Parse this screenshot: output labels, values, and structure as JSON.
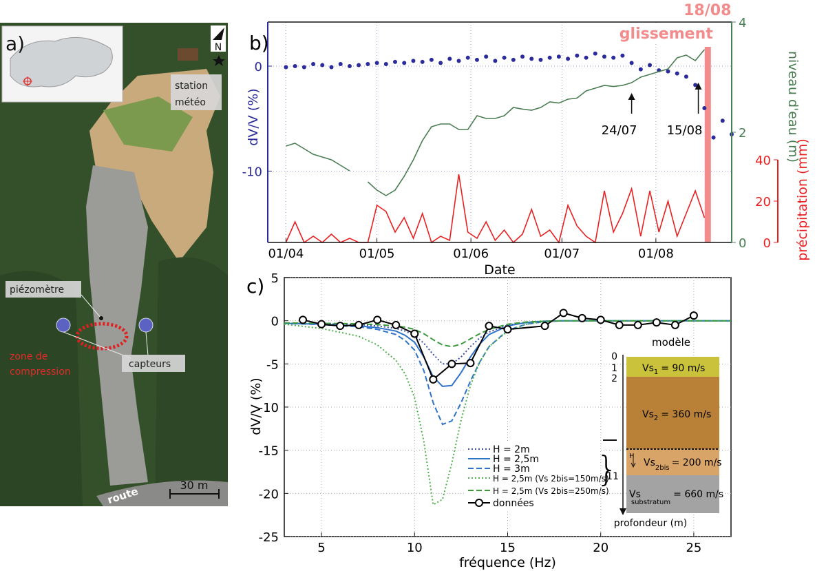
{
  "panel_a": {
    "label": "a)",
    "north": "N",
    "station_label": [
      "station",
      "météo"
    ],
    "piezometer": "piézomètre",
    "zone_label": [
      "zone de",
      "compression"
    ],
    "sensors": "capteurs",
    "scale": "30 m",
    "road": "route"
  },
  "chart_data": [
    {
      "type": "line",
      "label": "b)",
      "x_label": "Date",
      "y_label": "dV/V (%)",
      "y2_label": "niveau d'eau (m)",
      "y3_label": "précipitation (mm)",
      "xlim": [
        "26/03",
        "26/08"
      ],
      "xticks": [
        "01/04",
        "01/05",
        "01/06",
        "01/07",
        "01/08"
      ],
      "ylim": [
        -16.8,
        4.2
      ],
      "yticks": [
        0,
        -10
      ],
      "y2lim": [
        0,
        4
      ],
      "y2ticks": [
        0,
        2,
        4
      ],
      "y3lim": [
        0,
        40
      ],
      "y3ticks": [
        0,
        20,
        40
      ],
      "grid": true,
      "x": [
        "01/04",
        "04/04",
        "07/04",
        "10/04",
        "13/04",
        "16/04",
        "19/04",
        "22/04",
        "25/04",
        "28/04",
        "01/05",
        "04/05",
        "07/05",
        "10/05",
        "13/05",
        "16/05",
        "19/05",
        "22/05",
        "25/05",
        "28/05",
        "31/05",
        "03/06",
        "06/06",
        "09/06",
        "12/06",
        "15/06",
        "18/06",
        "21/06",
        "24/06",
        "27/06",
        "30/06",
        "03/07",
        "06/07",
        "09/07",
        "12/07",
        "15/07",
        "18/07",
        "21/07",
        "24/07",
        "27/07",
        "30/07",
        "02/08",
        "05/08",
        "08/08",
        "11/08",
        "14/08",
        "17/08",
        "20/08",
        "23/08",
        "26/08"
      ],
      "series": [
        {
          "color": "#2b2b9c",
          "mode": "markers",
          "axis": "y",
          "values": [
            -0.1,
            0,
            -0.1,
            0.2,
            0.1,
            -0.1,
            0.2,
            0,
            0.1,
            0.2,
            0.3,
            0.2,
            0.4,
            0.3,
            0.5,
            0.4,
            0.6,
            0.3,
            0.7,
            0.5,
            0.8,
            0.6,
            0.9,
            0.5,
            0.8,
            0.6,
            0.9,
            0.7,
            0.6,
            0.8,
            0.9,
            0.7,
            1.0,
            0.8,
            1.2,
            0.9,
            0.8,
            1.0,
            0.3,
            -0.3,
            0.1,
            -0.4,
            -0.5,
            -0.7,
            -1.0,
            -1.8,
            -4.0,
            -6.8,
            -5.2,
            -6.5
          ]
        },
        {
          "color": "#4a7d52",
          "mode": "line",
          "axis": "y2",
          "values": [
            1.75,
            1.8,
            1.7,
            1.6,
            1.55,
            1.5,
            1.4,
            1.3,
            null,
            1.1,
            0.95,
            0.85,
            0.95,
            1.2,
            1.5,
            1.85,
            2.1,
            2.15,
            2.15,
            2.05,
            2.05,
            2.3,
            2.25,
            2.25,
            2.3,
            2.45,
            2.42,
            2.4,
            2.45,
            2.55,
            2.53,
            2.6,
            2.62,
            2.75,
            2.8,
            2.85,
            2.83,
            2.85,
            2.9,
            3.0,
            3.05,
            3.1,
            3.15,
            3.35,
            3.4,
            3.3,
            3.5,
            null,
            null,
            null
          ]
        },
        {
          "color": "#e82020",
          "mode": "line",
          "axis": "y3",
          "values": [
            0,
            10,
            0,
            3,
            0,
            4,
            0,
            2,
            0,
            0,
            18,
            15,
            5,
            12,
            2,
            14,
            0,
            3,
            1,
            33,
            5,
            2,
            10,
            1,
            6,
            0,
            4,
            16,
            3,
            6,
            0,
            18,
            8,
            3,
            0,
            25,
            5,
            14,
            26,
            3,
            25,
            5,
            20,
            3,
            14,
            25,
            12,
            null,
            null,
            null
          ]
        }
      ],
      "event": {
        "date": "18/08",
        "label": "glissement",
        "color": "#f28b8b"
      },
      "arrows": [
        {
          "date": "24/07"
        },
        {
          "date": "15/08"
        }
      ]
    },
    {
      "type": "line",
      "label": "c)",
      "x_label": "fréquence (Hz)",
      "y_label": "dV/V (%)",
      "xlim": [
        3,
        27
      ],
      "xticks": [
        5,
        10,
        15,
        20,
        25
      ],
      "ylim": [
        -25,
        5
      ],
      "yticks": [
        5,
        0,
        -5,
        -10,
        -15,
        -20,
        -25
      ],
      "grid": true,
      "series": [
        {
          "name": "H = 2m",
          "color": "#3b4ba8",
          "dash": "dotted",
          "x": [
            3,
            5,
            7,
            8,
            9,
            9.5,
            10,
            10.5,
            11,
            11.5,
            12,
            12.5,
            13,
            13.5,
            14,
            15,
            16,
            17,
            18,
            20,
            22,
            25,
            27
          ],
          "values": [
            -0.3,
            -0.35,
            -0.45,
            -0.6,
            -0.9,
            -1.2,
            -1.7,
            -2.6,
            -3.9,
            -5.0,
            -5.0,
            -4.2,
            -3.0,
            -2.0,
            -1.3,
            -0.5,
            -0.2,
            -0.05,
            0,
            0,
            0,
            0,
            0
          ]
        },
        {
          "name": "H = 2,5m",
          "color": "#2f73c9",
          "dash": "solid",
          "x": [
            3,
            5,
            7,
            8,
            9,
            9.5,
            10,
            10.5,
            11,
            11.5,
            12,
            12.5,
            13,
            13.5,
            14,
            15,
            16,
            17,
            18,
            20,
            22,
            25,
            27
          ],
          "values": [
            -0.3,
            -0.4,
            -0.6,
            -0.8,
            -1.2,
            -1.7,
            -2.5,
            -4.2,
            -6.5,
            -7.6,
            -7.5,
            -6.0,
            -4.2,
            -2.7,
            -1.6,
            -0.6,
            -0.2,
            -0.05,
            0,
            0,
            0,
            0,
            0
          ]
        },
        {
          "name": "H = 3m",
          "color": "#2f73c9",
          "dash": "dashed",
          "x": [
            3,
            5,
            7,
            8,
            9,
            9.5,
            10,
            10.5,
            11,
            11.5,
            12,
            12.5,
            13,
            13.5,
            14,
            15,
            16,
            17,
            18,
            20,
            22,
            25,
            27
          ],
          "values": [
            -0.3,
            -0.45,
            -0.7,
            -1.0,
            -1.6,
            -2.3,
            -3.4,
            -5.8,
            -9.5,
            -12.0,
            -11.6,
            -9.5,
            -7.0,
            -4.8,
            -3.0,
            -1.1,
            -0.4,
            -0.1,
            0,
            0,
            0,
            0,
            0
          ]
        },
        {
          "name": "H = 2,5m (Vs 2bis=150m/s)",
          "color": "#4db04a",
          "dash": "dotted",
          "x": [
            3,
            5,
            7,
            8,
            9,
            9.5,
            10,
            10.5,
            11,
            11.5,
            12,
            12.5,
            13,
            13.5,
            14,
            15,
            16,
            17,
            18,
            20,
            22,
            25,
            27
          ],
          "values": [
            -0.4,
            -0.9,
            -1.8,
            -2.8,
            -4.6,
            -6.2,
            -8.9,
            -14.0,
            -21.3,
            -20.7,
            -16.5,
            -11.5,
            -7.5,
            -4.8,
            -3.0,
            -1.2,
            -0.4,
            -0.1,
            0,
            0,
            0,
            0,
            0
          ]
        },
        {
          "name": "H = 2,5m (Vs 2bis=250m/s)",
          "color": "#3a9a3a",
          "dash": "dashed",
          "x": [
            3,
            5,
            7,
            8,
            9,
            9.5,
            10,
            10.5,
            11,
            11.5,
            12,
            12.5,
            13,
            13.5,
            14,
            15,
            16,
            17,
            18,
            20,
            22,
            25,
            27
          ],
          "values": [
            -0.25,
            -0.3,
            -0.35,
            -0.45,
            -0.6,
            -0.75,
            -1.0,
            -1.5,
            -2.2,
            -2.8,
            -3.0,
            -2.7,
            -2.1,
            -1.5,
            -1.0,
            -0.4,
            -0.15,
            -0.05,
            0,
            0,
            0,
            0,
            0
          ]
        },
        {
          "name": "données",
          "color": "#000000",
          "dash": "solid",
          "markers": true,
          "x": [
            4,
            5,
            6,
            7,
            8,
            9,
            10,
            11,
            12,
            13,
            14,
            15,
            17,
            18,
            19,
            20,
            21,
            22,
            23,
            24,
            25
          ],
          "values": [
            0.1,
            -0.4,
            -0.6,
            -0.5,
            0.1,
            -0.5,
            -1.5,
            -6.8,
            -5.0,
            -4.9,
            -0.6,
            -1.0,
            -0.6,
            0.9,
            0.3,
            0.1,
            -0.5,
            -0.5,
            -0.2,
            -0.5,
            0.6
          ]
        }
      ]
    }
  ],
  "model_inset": {
    "title": "modèle",
    "depth_labels": [
      0,
      1,
      2,
      11
    ],
    "h_label": "H",
    "axis_label": "profondeur (m)",
    "layers": [
      {
        "symbol": "Vs",
        "sub": "1",
        "value": "= 90 m/s"
      },
      {
        "symbol": "Vs",
        "sub": "2",
        "value": "= 360 m/s"
      },
      {
        "symbol": "Vs",
        "sub": "2bis",
        "value": "= 200 m/s"
      },
      {
        "symbol": "Vs",
        "sub": "substratum",
        "value": "= 660 m/s"
      }
    ]
  }
}
